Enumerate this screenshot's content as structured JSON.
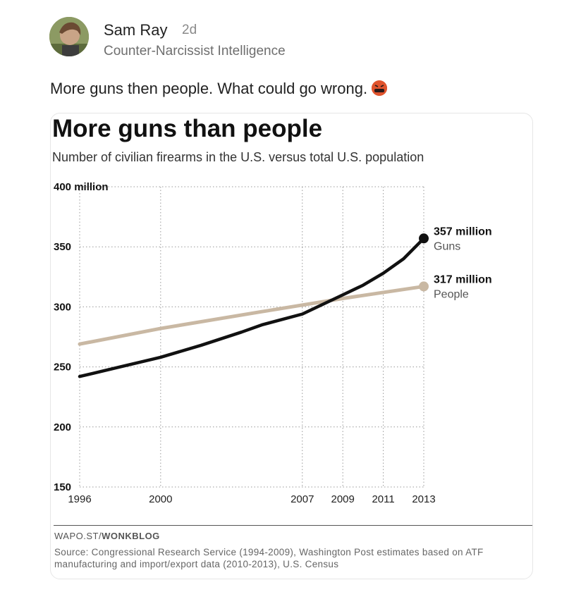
{
  "post": {
    "author_name": "Sam Ray",
    "age": "2d",
    "author_subtitle": "Counter-Narcissist Intelligence",
    "text": "More guns then people. What could go wrong.",
    "emoji": "face-with-symbols-on-mouth"
  },
  "chart_data": {
    "type": "line",
    "title": "More guns than people",
    "subtitle": "Number of civilian firearms in the U.S. versus total U.S. population",
    "ylim": [
      150,
      400
    ],
    "y_ticks": [
      "400 million",
      "350",
      "300",
      "250",
      "200",
      "150"
    ],
    "x_ticks": [
      "1996",
      "2000",
      "2007",
      "2009",
      "2011",
      "2013"
    ],
    "xlim": [
      1996,
      2013
    ],
    "grid": true,
    "series": [
      {
        "name": "Guns",
        "end_label": "357 million",
        "color": "#111111",
        "x": [
          1996,
          1998,
          2000,
          2002,
          2004,
          2005,
          2007,
          2008,
          2009,
          2010,
          2011,
          2012,
          2013
        ],
        "values": [
          242,
          250,
          258,
          268,
          279,
          285,
          294,
          302,
          310,
          318,
          328,
          340,
          357
        ]
      },
      {
        "name": "People",
        "end_label": "317 million",
        "color": "#c9b8a3",
        "x": [
          1996,
          2000,
          2005,
          2009,
          2011,
          2013
        ],
        "values": [
          269,
          282,
          296,
          307,
          312,
          317
        ]
      }
    ]
  },
  "footer": {
    "brand_prefix": "WAPO.ST/",
    "brand_suffix": "WONKBLOG",
    "source": "Source: Congressional Research Service (1994-2009), Washington Post estimates based on ATF manufacturing and import/export data (2010-2013), U.S. Census"
  }
}
